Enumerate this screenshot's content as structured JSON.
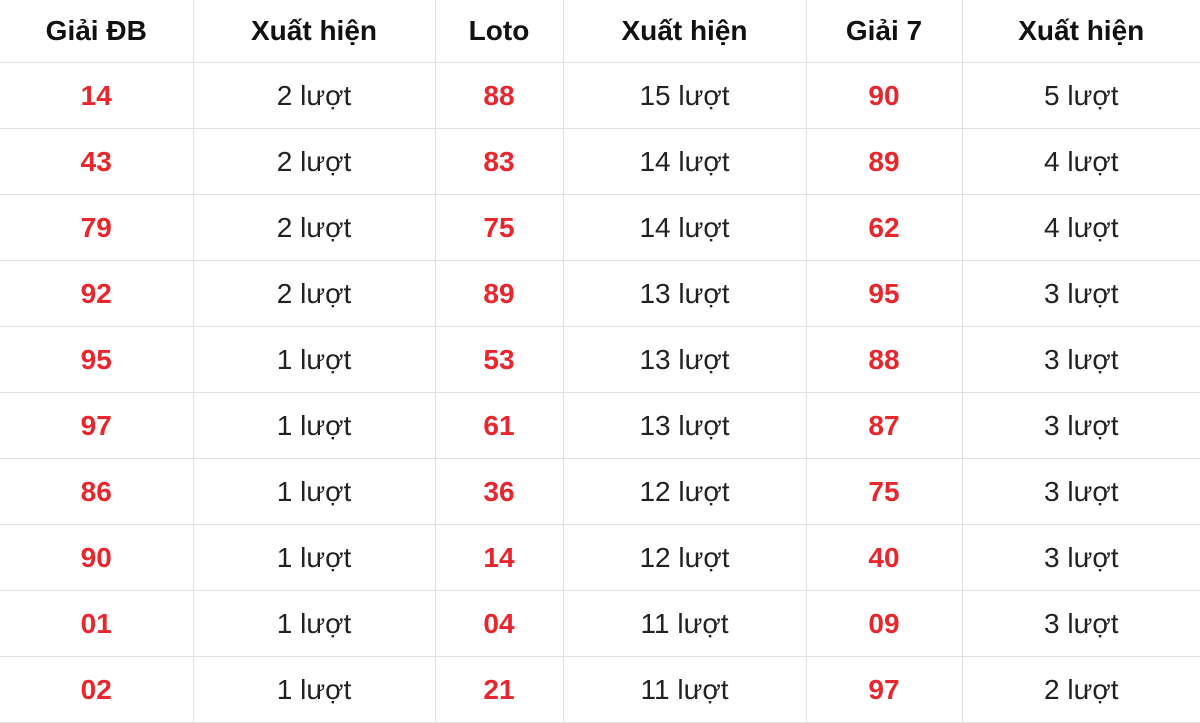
{
  "colors": {
    "number": "#e8262d",
    "border": "#e0e0e0"
  },
  "headers": [
    "Giải ĐB",
    "Xuất hiện",
    "Loto",
    "Xuất hiện",
    "Giải 7",
    "Xuất hiện"
  ],
  "rows": [
    [
      "14",
      "2 lượt",
      "88",
      "15 lượt",
      "90",
      "5 lượt"
    ],
    [
      "43",
      "2 lượt",
      "83",
      "14 lượt",
      "89",
      "4 lượt"
    ],
    [
      "79",
      "2 lượt",
      "75",
      "14 lượt",
      "62",
      "4 lượt"
    ],
    [
      "92",
      "2 lượt",
      "89",
      "13 lượt",
      "95",
      "3 lượt"
    ],
    [
      "95",
      "1 lượt",
      "53",
      "13 lượt",
      "88",
      "3 lượt"
    ],
    [
      "97",
      "1 lượt",
      "61",
      "13 lượt",
      "87",
      "3 lượt"
    ],
    [
      "86",
      "1 lượt",
      "36",
      "12 lượt",
      "75",
      "3 lượt"
    ],
    [
      "90",
      "1 lượt",
      "14",
      "12 lượt",
      "40",
      "3 lượt"
    ],
    [
      "01",
      "1 lượt",
      "04",
      "11 lượt",
      "09",
      "3 lượt"
    ],
    [
      "02",
      "1 lượt",
      "21",
      "11 lượt",
      "97",
      "2 lượt"
    ]
  ]
}
